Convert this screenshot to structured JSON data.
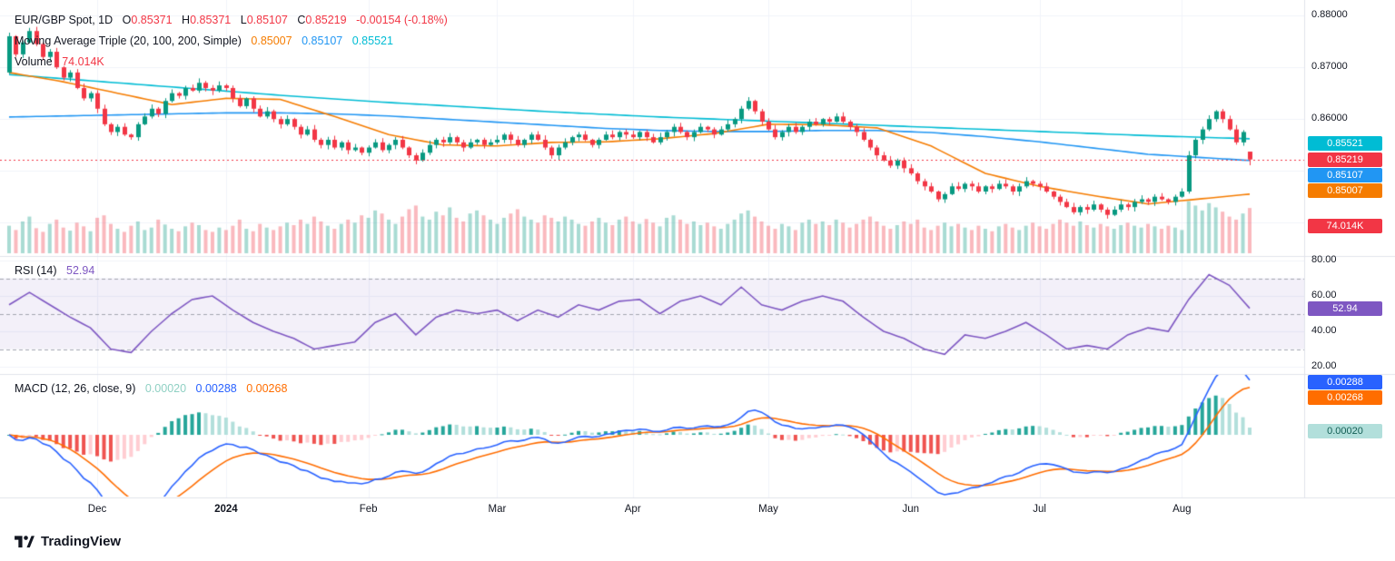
{
  "header": {
    "title": "EUR/GBP Spot, 1D",
    "o_label": "O",
    "o_value": "0.85371",
    "h_label": "H",
    "h_value": "0.85371",
    "l_label": "L",
    "l_value": "0.85107",
    "c_label": "C",
    "c_value": "0.85219",
    "change": "-0.00154 (-0.18%)"
  },
  "indicators": {
    "ma": {
      "label": "Moving Average Triple (20, 100, 200, Simple)",
      "ma20": "0.85007",
      "ma100": "0.85107",
      "ma200": "0.85521"
    },
    "volume": {
      "label": "Volume",
      "value": "74.014K"
    },
    "rsi": {
      "label": "RSI (14)",
      "value": "52.94"
    },
    "macd": {
      "label": "MACD (12, 26, close, 9)",
      "hist": "0.00020",
      "macd": "0.00288",
      "signal": "0.00268"
    }
  },
  "price_scale": {
    "ticks": [
      {
        "label": "0.88000",
        "value": 0.88
      },
      {
        "label": "0.87000",
        "value": 0.87
      },
      {
        "label": "0.86000",
        "value": 0.86
      }
    ],
    "badges": [
      {
        "name": "price-badge-ma200",
        "text": "0.85521",
        "value": 0.85521,
        "bg": "#00bcd4",
        "fg": "#ffffff"
      },
      {
        "name": "price-badge-last",
        "text": "0.85219",
        "value": 0.85219,
        "bg": "#f23645",
        "fg": "#ffffff"
      },
      {
        "name": "price-badge-ma100",
        "text": "0.85107",
        "value": 0.85107,
        "bg": "#2196f3",
        "fg": "#ffffff"
      },
      {
        "name": "price-badge-ma20",
        "text": "0.85007",
        "value": 0.85007,
        "bg": "#f57c00",
        "fg": "#ffffff"
      },
      {
        "name": "volume-badge",
        "text": "74.014K",
        "value": null,
        "bg": "#f23645",
        "fg": "#ffffff"
      }
    ]
  },
  "rsi_scale": {
    "ticks": [
      {
        "label": "80.00",
        "value": 80
      },
      {
        "label": "60.00",
        "value": 60
      },
      {
        "label": "40.00",
        "value": 40
      },
      {
        "label": "20.00",
        "value": 20
      }
    ],
    "badge": {
      "name": "rsi-badge",
      "text": "52.94",
      "value": 52.94,
      "bg": "#7e57c2",
      "fg": "#ffffff"
    }
  },
  "macd_scale": {
    "badges": [
      {
        "name": "macd-badge-line",
        "text": "0.00288",
        "value": 0.00288,
        "bg": "#2962ff",
        "fg": "#ffffff"
      },
      {
        "name": "macd-badge-signal",
        "text": "0.00268",
        "value": 0.00268,
        "bg": "#ff6d00",
        "fg": "#ffffff"
      },
      {
        "name": "macd-badge-hist",
        "text": "0.00020",
        "value": 0.0002,
        "bg": "#b2dfdb",
        "fg": "#135e54"
      }
    ]
  },
  "time_axis": {
    "labels": [
      {
        "text": "Dec",
        "i": 13,
        "bold": false
      },
      {
        "text": "2024",
        "i": 32,
        "bold": true
      },
      {
        "text": "Feb",
        "i": 53,
        "bold": false
      },
      {
        "text": "Mar",
        "i": 72,
        "bold": false
      },
      {
        "text": "Apr",
        "i": 92,
        "bold": false
      },
      {
        "text": "May",
        "i": 112,
        "bold": false
      },
      {
        "text": "Jun",
        "i": 133,
        "bold": false
      },
      {
        "text": "Jul",
        "i": 152,
        "bold": false
      },
      {
        "text": "Aug",
        "i": 173,
        "bold": false
      }
    ]
  },
  "branding": {
    "name": "TradingView"
  },
  "chart_data": {
    "type": "candlestick",
    "symbol": "EUR/GBP Spot",
    "interval": "1D",
    "last_ohlc": {
      "open": 0.85371,
      "high": 0.85371,
      "low": 0.85107,
      "close": 0.85219,
      "change": -0.00154,
      "change_pct": -0.18
    },
    "current_price": 0.85219,
    "price_axis_range": [
      0.8339,
      0.8816
    ],
    "colors": {
      "up": "#089981",
      "down": "#f23645",
      "ma20": "#f57c00",
      "ma100": "#2196f3",
      "ma200": "#00bcd4",
      "rsi": "#7e57c2",
      "macd": "#2962ff",
      "signal": "#ff6d00",
      "hist_up": "#26a69a",
      "hist_up_fade": "#b2dfdb",
      "hist_dn": "#ef5350",
      "hist_dn_fade": "#ffcdd2",
      "price_line": "#f23645"
    },
    "closes": [
      0.876,
      0.8725,
      0.8748,
      0.877,
      0.8745,
      0.872,
      0.873,
      0.87,
      0.868,
      0.869,
      0.866,
      0.864,
      0.865,
      0.862,
      0.859,
      0.8575,
      0.8585,
      0.857,
      0.8565,
      0.859,
      0.8605,
      0.862,
      0.861,
      0.8635,
      0.865,
      0.8645,
      0.866,
      0.8655,
      0.867,
      0.866,
      0.8655,
      0.8665,
      0.866,
      0.864,
      0.8625,
      0.864,
      0.862,
      0.8605,
      0.8615,
      0.86,
      0.859,
      0.86,
      0.8585,
      0.857,
      0.858,
      0.856,
      0.855,
      0.856,
      0.8545,
      0.8555,
      0.854,
      0.8545,
      0.8535,
      0.8545,
      0.8555,
      0.854,
      0.855,
      0.856,
      0.8545,
      0.853,
      0.852,
      0.8535,
      0.855,
      0.856,
      0.8555,
      0.8565,
      0.8555,
      0.8545,
      0.8555,
      0.856,
      0.855,
      0.8555,
      0.856,
      0.857,
      0.856,
      0.855,
      0.856,
      0.857,
      0.856,
      0.8545,
      0.853,
      0.8545,
      0.8555,
      0.8565,
      0.857,
      0.856,
      0.855,
      0.856,
      0.857,
      0.8565,
      0.8575,
      0.857,
      0.8565,
      0.8575,
      0.8565,
      0.8555,
      0.8565,
      0.8575,
      0.8585,
      0.8575,
      0.8565,
      0.8575,
      0.8585,
      0.858,
      0.857,
      0.858,
      0.859,
      0.86,
      0.862,
      0.8635,
      0.8615,
      0.8595,
      0.858,
      0.8565,
      0.8575,
      0.8585,
      0.8575,
      0.8585,
      0.8595,
      0.859,
      0.86,
      0.8595,
      0.8605,
      0.8595,
      0.8585,
      0.8575,
      0.856,
      0.8545,
      0.853,
      0.852,
      0.851,
      0.852,
      0.8505,
      0.8495,
      0.848,
      0.847,
      0.846,
      0.8445,
      0.8455,
      0.847,
      0.8465,
      0.8475,
      0.847,
      0.846,
      0.847,
      0.8465,
      0.8475,
      0.847,
      0.846,
      0.847,
      0.848,
      0.8475,
      0.847,
      0.846,
      0.845,
      0.844,
      0.843,
      0.842,
      0.843,
      0.8425,
      0.8435,
      0.8425,
      0.8415,
      0.8425,
      0.8435,
      0.843,
      0.844,
      0.8445,
      0.844,
      0.845,
      0.8445,
      0.844,
      0.845,
      0.846,
      0.853,
      0.856,
      0.858,
      0.86,
      0.8615,
      0.86,
      0.858,
      0.8555,
      0.8575,
      0.8522
    ],
    "first_open": 0.869,
    "volumes_k": [
      45,
      38,
      52,
      60,
      41,
      35,
      48,
      55,
      42,
      37,
      50,
      44,
      36,
      58,
      62,
      48,
      40,
      35,
      45,
      52,
      38,
      42,
      55,
      47,
      40,
      36,
      44,
      50,
      46,
      38,
      35,
      42,
      38,
      45,
      55,
      40,
      36,
      48,
      42,
      38,
      44,
      50,
      46,
      55,
      48,
      60,
      52,
      45,
      40,
      48,
      55,
      50,
      62,
      58,
      70,
      65,
      55,
      48,
      60,
      72,
      78,
      60,
      55,
      68,
      62,
      75,
      58,
      52,
      65,
      70,
      62,
      55,
      48,
      58,
      65,
      72,
      60,
      55,
      50,
      62,
      58,
      52,
      60,
      55,
      48,
      45,
      52,
      58,
      50,
      46,
      55,
      60,
      52,
      48,
      56,
      50,
      44,
      58,
      62,
      55,
      48,
      52,
      46,
      50,
      44,
      40,
      48,
      55,
      65,
      70,
      60,
      52,
      45,
      40,
      48,
      44,
      38,
      50,
      55,
      48,
      52,
      46,
      55,
      50,
      42,
      48,
      55,
      60,
      52,
      45,
      40,
      46,
      52,
      48,
      55,
      42,
      38,
      45,
      50,
      44,
      48,
      42,
      38,
      45,
      40,
      36,
      44,
      48,
      42,
      38,
      45,
      50,
      44,
      40,
      48,
      55,
      50,
      45,
      52,
      46,
      42,
      48,
      44,
      40,
      46,
      50,
      45,
      42,
      48,
      44,
      40,
      45,
      42,
      38,
      85,
      78,
      70,
      82,
      75,
      68,
      60,
      55,
      65,
      74
    ],
    "last_volume_k": 74.014,
    "overlays": {
      "anchor_step": 8,
      "ma20_anchors": [
        0.869,
        0.8672,
        0.865,
        0.8628,
        0.864,
        0.8638,
        0.8605,
        0.857,
        0.855,
        0.8548,
        0.8555,
        0.8556,
        0.8562,
        0.8572,
        0.859,
        0.8589,
        0.8583,
        0.8548,
        0.8495,
        0.847,
        0.8452,
        0.8436,
        0.8455,
        0.85007
      ],
      "ma100_anchors": [
        0.8604,
        0.8606,
        0.8608,
        0.861,
        0.8612,
        0.8612,
        0.861,
        0.8606,
        0.86,
        0.8594,
        0.8588,
        0.8582,
        0.8578,
        0.8576,
        0.8576,
        0.8578,
        0.8578,
        0.8574,
        0.8566,
        0.8556,
        0.8544,
        0.8532,
        0.852,
        0.85107
      ],
      "ma200_anchors": [
        0.8686,
        0.8678,
        0.867,
        0.8662,
        0.8654,
        0.8646,
        0.8639,
        0.8632,
        0.8626,
        0.862,
        0.8614,
        0.8609,
        0.8604,
        0.86,
        0.8596,
        0.8592,
        0.8588,
        0.8584,
        0.858,
        0.8576,
        0.8572,
        0.8568,
        0.8562,
        0.85521
      ]
    },
    "rsi": {
      "period": 14,
      "last": 52.94,
      "levels": [
        70,
        50,
        30
      ],
      "display_range": [
        20,
        80
      ],
      "anchor_step": 3,
      "anchors": [
        55,
        62,
        55,
        48,
        42,
        30,
        28,
        40,
        50,
        58,
        60,
        52,
        45,
        40,
        36,
        30,
        32,
        34,
        45,
        50,
        38,
        48,
        52,
        50,
        52,
        46,
        52,
        48,
        55,
        52,
        57,
        58,
        50,
        57,
        60,
        55,
        65,
        55,
        52,
        57,
        60,
        57,
        48,
        40,
        36,
        30,
        27,
        38,
        36,
        40,
        45,
        38,
        30,
        32,
        30,
        38,
        42,
        40,
        58,
        72,
        66,
        53
      ]
    },
    "macd": {
      "fast": 12,
      "slow": 26,
      "signal_period": 9,
      "source": "close",
      "last_macd": 0.00288,
      "last_signal": 0.00268,
      "last_hist": 0.0002
    }
  }
}
